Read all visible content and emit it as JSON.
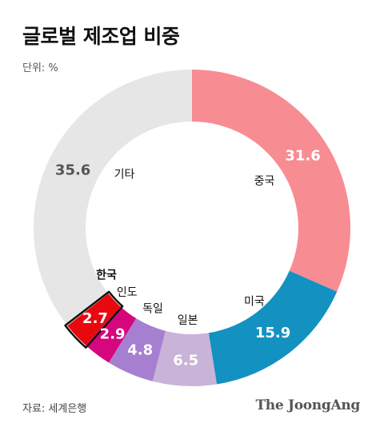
{
  "header": {
    "title": "글로벌 제조업 비중",
    "unit": "단위: %"
  },
  "footer": {
    "source": "자료: 세계은행",
    "brand": "The JoongAng"
  },
  "chart_data": {
    "type": "pie",
    "title": "글로벌 제조업 비중",
    "unit": "%",
    "donut": true,
    "start_angle": "12 o'clock, clockwise",
    "slices": [
      {
        "label": "중국",
        "value": 31.6,
        "display": "31.6",
        "color": "#f78d93",
        "value_color": "#ffffff"
      },
      {
        "label": "미국",
        "value": 15.9,
        "display": "15.9",
        "color": "#1392c1",
        "value_color": "#ffffff"
      },
      {
        "label": "일본",
        "value": 6.5,
        "display": "6.5",
        "color": "#c9b3d9",
        "value_color": "#ffffff"
      },
      {
        "label": "독일",
        "value": 4.8,
        "display": "4.8",
        "color": "#a77fd1",
        "value_color": "#ffffff"
      },
      {
        "label": "인도",
        "value": 2.9,
        "display": "2.9",
        "color": "#d6067d",
        "value_color": "#ffffff"
      },
      {
        "label": "한국",
        "value": 2.7,
        "display": "2.7",
        "color": "#e8080e",
        "value_color": "#ffffff",
        "highlight": true,
        "label_color": "#e8080e"
      },
      {
        "label": "기타",
        "value": 35.6,
        "display": "35.6",
        "color": "#e6e6e6",
        "value_color": "#555555"
      }
    ]
  }
}
